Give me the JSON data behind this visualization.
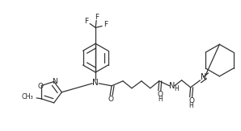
{
  "background_color": "#ffffff",
  "line_color": "#333333",
  "line_width": 0.9,
  "figsize": [
    2.98,
    1.63
  ],
  "dpi": 100,
  "xlim": [
    0,
    298
  ],
  "ylim": [
    0,
    163
  ]
}
